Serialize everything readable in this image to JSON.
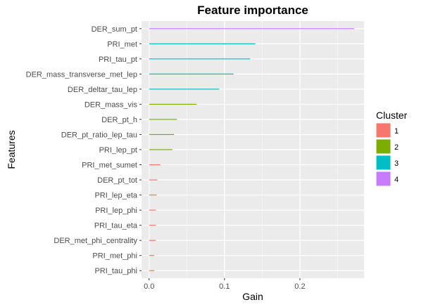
{
  "chart_data": {
    "type": "bar",
    "orientation": "horizontal",
    "title": "Feature importance",
    "xlabel": "Gain",
    "ylabel": "Features",
    "xlim": [
      -0.01,
      0.285
    ],
    "x_ticks": [
      0.0,
      0.1,
      0.2
    ],
    "x_tick_labels": [
      "0.0",
      "0.1",
      "0.2"
    ],
    "grid": true,
    "legend": {
      "title": "Cluster",
      "position": "right",
      "entries": [
        {
          "label": "1",
          "color": "#F8766D"
        },
        {
          "label": "2",
          "color": "#7CAE00"
        },
        {
          "label": "3",
          "color": "#00BFC4"
        },
        {
          "label": "4",
          "color": "#C77CFF"
        }
      ]
    },
    "features": [
      {
        "name": "DER_sum_pt",
        "gain": 0.272,
        "cluster": "4"
      },
      {
        "name": "PRI_met",
        "gain": 0.141,
        "cluster": "3"
      },
      {
        "name": "PRI_tau_pt",
        "gain": 0.134,
        "cluster": "3"
      },
      {
        "name": "DER_mass_transverse_met_lep",
        "gain": 0.112,
        "cluster": "3"
      },
      {
        "name": "DER_deltar_tau_lep",
        "gain": 0.093,
        "cluster": "3"
      },
      {
        "name": "DER_mass_vis",
        "gain": 0.063,
        "cluster": "2"
      },
      {
        "name": "DER_pt_h",
        "gain": 0.037,
        "cluster": "2"
      },
      {
        "name": "DER_pt_ratio_lep_tau",
        "gain": 0.033,
        "cluster": "2"
      },
      {
        "name": "PRI_lep_pt",
        "gain": 0.031,
        "cluster": "2"
      },
      {
        "name": "PRI_met_sumet",
        "gain": 0.015,
        "cluster": "1"
      },
      {
        "name": "DER_pt_tot",
        "gain": 0.011,
        "cluster": "1"
      },
      {
        "name": "PRI_lep_eta",
        "gain": 0.01,
        "cluster": "1"
      },
      {
        "name": "PRI_lep_phi",
        "gain": 0.009,
        "cluster": "1"
      },
      {
        "name": "PRI_tau_eta",
        "gain": 0.009,
        "cluster": "1"
      },
      {
        "name": "DER_met_phi_centrality",
        "gain": 0.009,
        "cluster": "1"
      },
      {
        "name": "PRI_met_phi",
        "gain": 0.007,
        "cluster": "1"
      },
      {
        "name": "PRI_tau_phi",
        "gain": 0.007,
        "cluster": "1"
      }
    ]
  }
}
